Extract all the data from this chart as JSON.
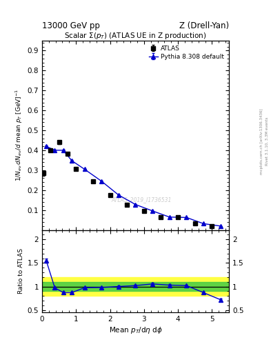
{
  "title_top": "13000 GeV pp",
  "title_right": "Z (Drell-Yan)",
  "plot_title": "Scalar Σ(p_{T}) (ATLAS UE in Z production)",
  "right_label": "Rivet 3.1.10, 3.3M events",
  "right_label2": "mcplots.cern.ch [arXiv:1306.3436]",
  "watermark": "ATLAS_2019_I1736531",
  "xlabel": "Mean $p_T$/d$\\eta$ d$\\phi$",
  "ylabel": "$1/N_{ev}\\,dN_{ev}/d$ mean $p_T$ [GeV]$^{-1}$",
  "ylabel_ratio": "Ratio to ATLAS",
  "atlas_x": [
    0.05,
    0.25,
    0.5,
    0.75,
    1.0,
    1.5,
    2.0,
    2.5,
    3.0,
    3.5,
    4.0,
    4.5,
    5.0
  ],
  "atlas_y": [
    0.285,
    0.4,
    0.44,
    0.383,
    0.307,
    0.244,
    0.176,
    0.128,
    0.096,
    0.063,
    0.063,
    0.032,
    0.02
  ],
  "atlas_yerr": [
    0.012,
    0.008,
    0.008,
    0.008,
    0.007,
    0.006,
    0.005,
    0.004,
    0.003,
    0.003,
    0.003,
    0.002,
    0.002
  ],
  "pythia_x": [
    0.125,
    0.375,
    0.625,
    0.875,
    1.25,
    1.75,
    2.25,
    2.75,
    3.25,
    3.75,
    4.25,
    4.75,
    5.25
  ],
  "pythia_y": [
    0.42,
    0.4,
    0.4,
    0.348,
    0.305,
    0.245,
    0.176,
    0.128,
    0.096,
    0.065,
    0.063,
    0.032,
    0.02
  ],
  "pythia_yerr": [
    0.003,
    0.003,
    0.003,
    0.003,
    0.002,
    0.002,
    0.002,
    0.001,
    0.001,
    0.001,
    0.001,
    0.001,
    0.001
  ],
  "ratio_x": [
    0.125,
    0.375,
    0.625,
    0.875,
    1.25,
    1.75,
    2.25,
    2.75,
    3.25,
    3.75,
    4.25,
    4.75,
    5.25
  ],
  "ratio_y": [
    1.55,
    0.975,
    0.87,
    0.87,
    0.975,
    0.98,
    1.0,
    1.02,
    1.055,
    1.03,
    1.02,
    0.87,
    0.72
  ],
  "ratio_yerr": [
    0.05,
    0.02,
    0.02,
    0.02,
    0.02,
    0.02,
    0.02,
    0.02,
    0.02,
    0.02,
    0.02,
    0.02,
    0.03
  ],
  "green_band": [
    0.9,
    1.1
  ],
  "yellow_band": [
    0.8,
    1.2
  ],
  "xlim": [
    0,
    5.5
  ],
  "ylim_main": [
    0.0,
    0.95
  ],
  "ylim_ratio": [
    0.45,
    2.2
  ],
  "main_yticks": [
    0.1,
    0.2,
    0.3,
    0.4,
    0.5,
    0.6,
    0.7,
    0.8,
    0.9
  ],
  "ratio_yticks": [
    0.5,
    1.0,
    1.5,
    2.0
  ],
  "ratio_ytick_labels": [
    "0.5",
    "1",
    "1.5",
    "2"
  ],
  "xticks": [
    0,
    1,
    2,
    3,
    4,
    5
  ],
  "atlas_color": "#000000",
  "pythia_color": "#0000cc",
  "green_color": "#44cc44",
  "yellow_color": "#ffff44",
  "bg_color": "#ffffff"
}
